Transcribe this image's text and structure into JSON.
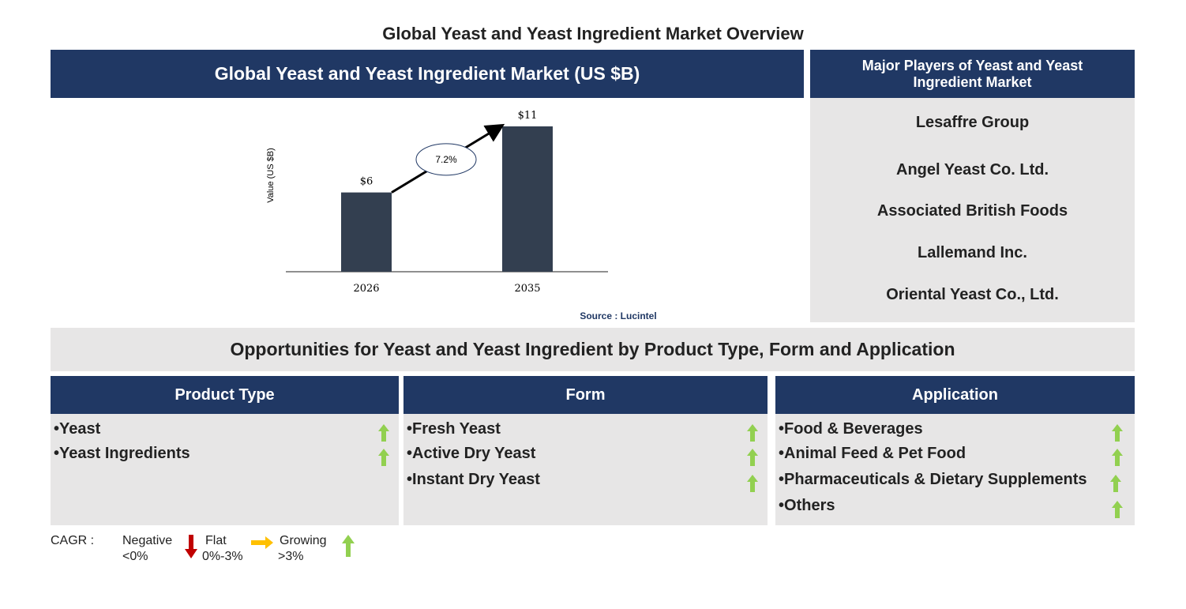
{
  "title": "Global Yeast and Yeast Ingredient Market Overview",
  "chart_data": {
    "type": "bar",
    "title": "Global Yeast and Yeast Ingredient Market (US $B)",
    "y_label": "Value (US $B)",
    "categories": [
      "2026",
      "2035"
    ],
    "values": [
      6,
      11
    ],
    "value_labels": [
      "$6",
      "$11"
    ],
    "color": "#333f50",
    "cagr_label": "7.2%",
    "source": "Source : Lucintel"
  },
  "players": {
    "title": "Major Players of Yeast and Yeast Ingredient Market",
    "items": [
      "Lesaffre Group",
      "Angel Yeast Co. Ltd.",
      "Associated British Foods",
      "Lallemand Inc.",
      "Oriental Yeast Co., Ltd."
    ]
  },
  "opportunities": {
    "title": "Opportunities for Yeast and Yeast Ingredient by Product Type, Form and Application",
    "columns": [
      {
        "title": "Product Type",
        "items": [
          "Yeast",
          "Yeast Ingredients"
        ]
      },
      {
        "title": "Form",
        "items": [
          "Fresh Yeast",
          "Active Dry Yeast",
          "Instant Dry Yeast"
        ]
      },
      {
        "title": "Application",
        "items": [
          "Food & Beverages",
          "Animal Feed & Pet Food",
          "Pharmaceuticals & Dietary Supplements",
          "Others"
        ]
      }
    ]
  },
  "legend": {
    "label": "CAGR :",
    "items": [
      {
        "name": "Negative",
        "range": "<0%"
      },
      {
        "name": "Flat",
        "range": "0%-3%"
      },
      {
        "name": "Growing",
        "range": ">3%"
      }
    ]
  }
}
